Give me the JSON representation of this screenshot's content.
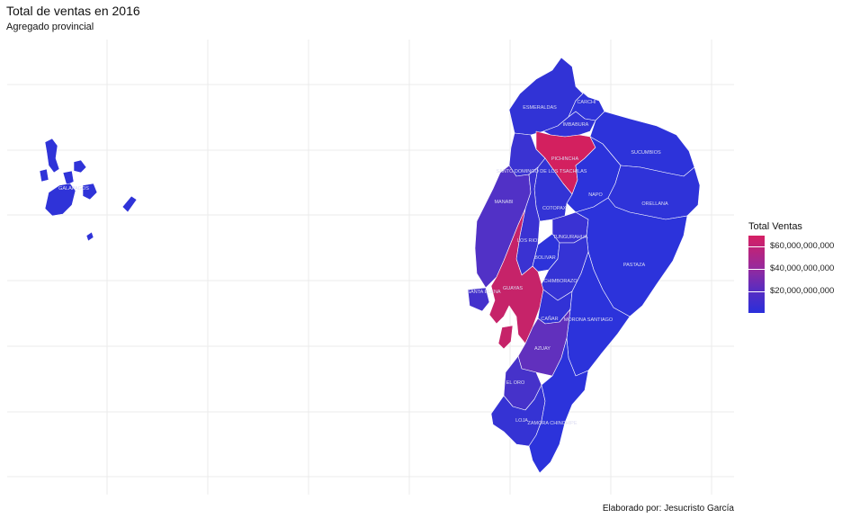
{
  "title": "Total de ventas en 2016",
  "subtitle": "Agregado provincial",
  "caption": "Elaborado por: Jesucristo García",
  "legend": {
    "title": "Total Ventas",
    "ticks": [
      "$60,000,000,000",
      "$40,000,000,000",
      "$20,000,000,000"
    ],
    "tick_values": [
      60000000000,
      40000000000,
      20000000000
    ],
    "range": [
      0,
      70000000000
    ],
    "low_color": "#2a2fdb",
    "high_color": "#d61f63"
  },
  "provinces": [
    {
      "name": "ESMERALDAS",
      "color": "#3133d6"
    },
    {
      "name": "CARCHI",
      "color": "#2f34d9"
    },
    {
      "name": "IMBABURA",
      "color": "#3132d6"
    },
    {
      "name": "SUCUMBIOS",
      "color": "#2d33da"
    },
    {
      "name": "PICHINCHA",
      "color": "#d3205f"
    },
    {
      "name": "SANTO DOMINGO DE LOS TSACHILAS",
      "color": "#3a33d2"
    },
    {
      "name": "NAPO",
      "color": "#2c33db"
    },
    {
      "name": "ORELLANA",
      "color": "#2f33d9"
    },
    {
      "name": "MANABI",
      "color": "#5131c6"
    },
    {
      "name": "SANTA ELENA",
      "color": "#4431cc"
    },
    {
      "name": "COTOPAXI",
      "color": "#3333d5"
    },
    {
      "name": "TUNGURAHUA",
      "color": "#3a32d3"
    },
    {
      "name": "LOS RIOS",
      "color": "#3a32d2"
    },
    {
      "name": "BOLIVAR",
      "color": "#2d33da"
    },
    {
      "name": "PASTAZA",
      "color": "#2c33db"
    },
    {
      "name": "CHIMBORAZO",
      "color": "#3533d5"
    },
    {
      "name": "GUAYAS",
      "color": "#c62369"
    },
    {
      "name": "CAÑAR",
      "color": "#3232d6"
    },
    {
      "name": "MORONA SANTIAGO",
      "color": "#2c33db"
    },
    {
      "name": "AZUAY",
      "color": "#6130bd"
    },
    {
      "name": "EL ORO",
      "color": "#4632ca"
    },
    {
      "name": "LOJA",
      "color": "#3533d4"
    },
    {
      "name": "ZAMORA CHINCHIPE",
      "color": "#2c33db"
    },
    {
      "name": "GALAPAGOS",
      "color": "#2f33d8"
    }
  ]
}
